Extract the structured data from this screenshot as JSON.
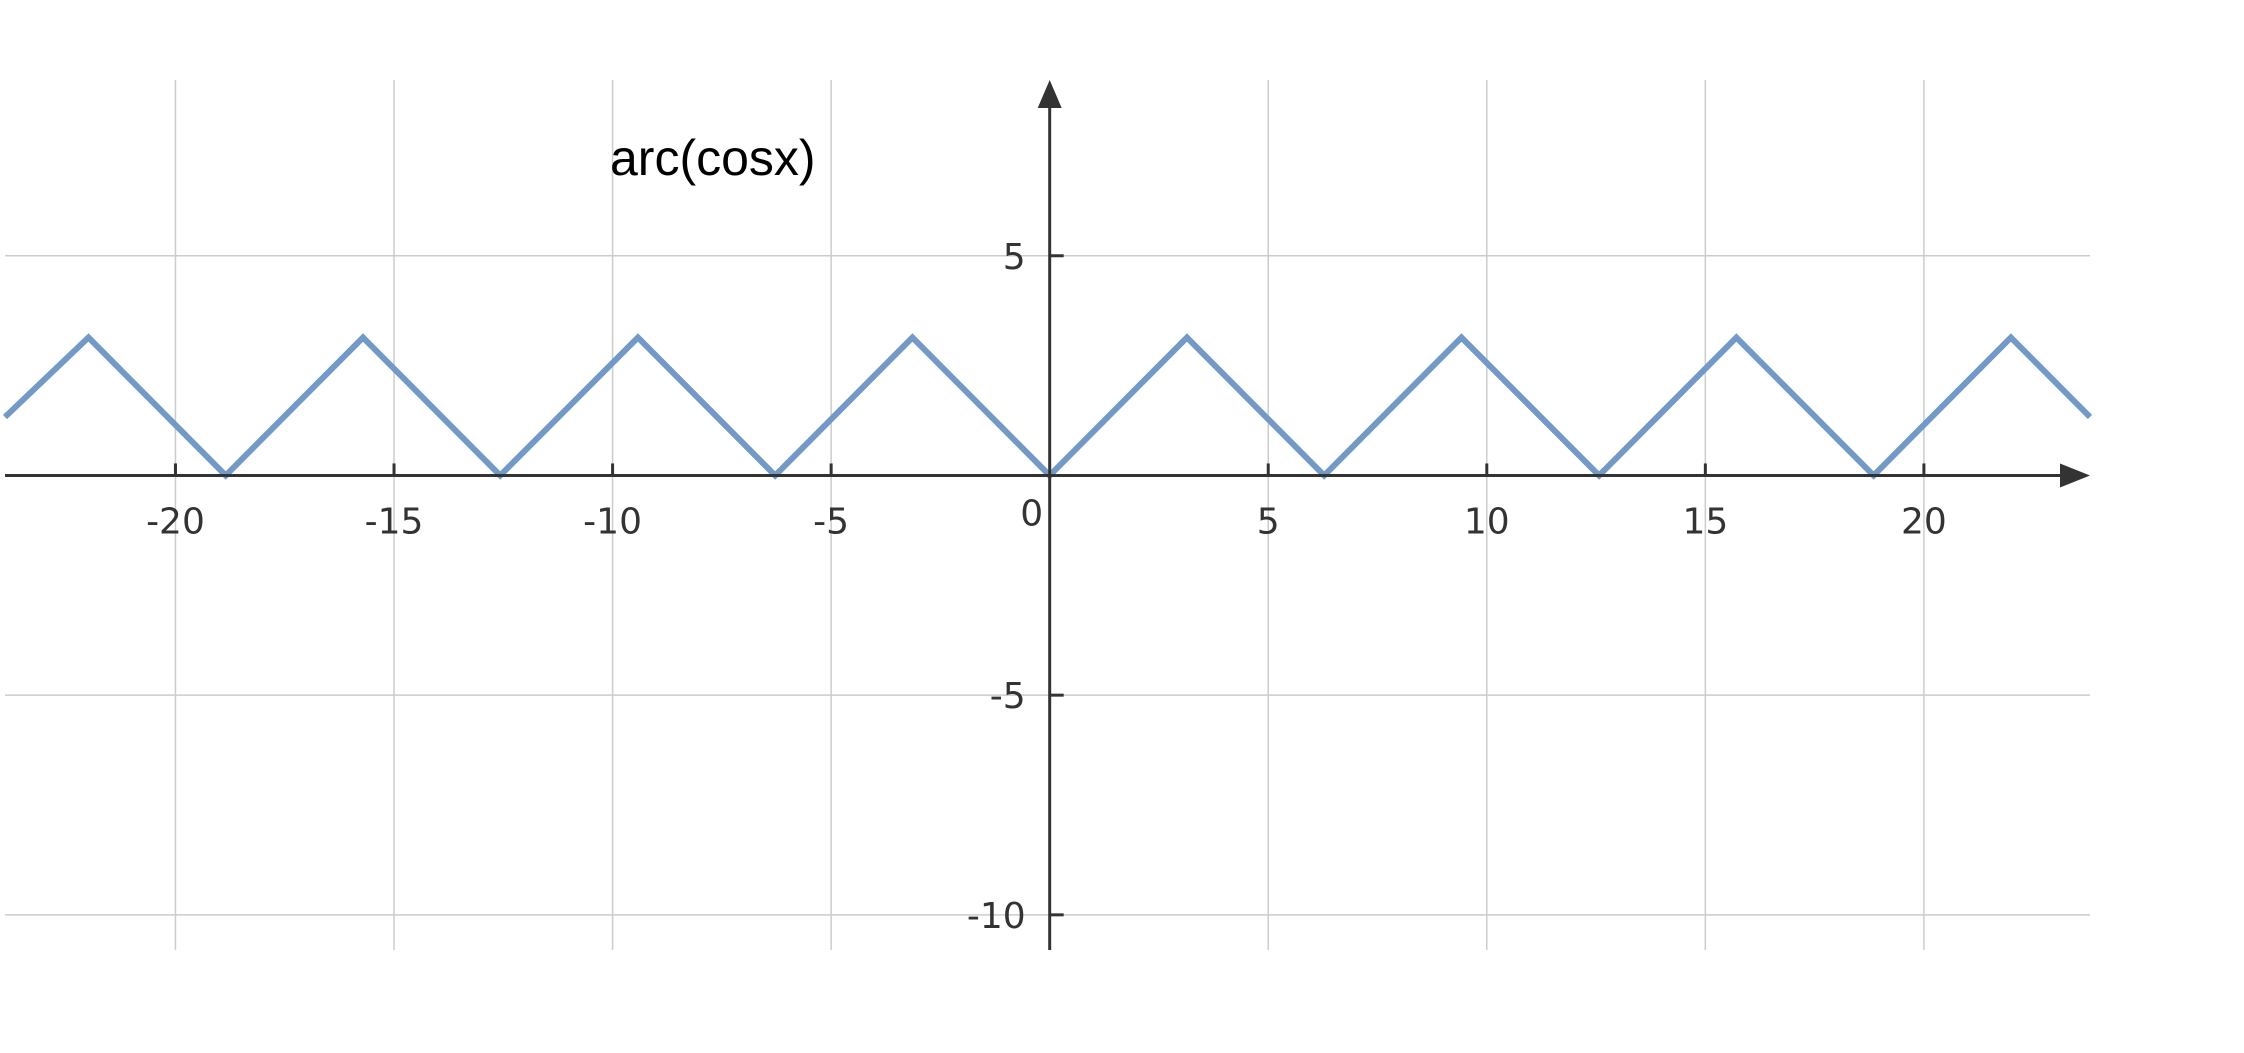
{
  "chart_data": {
    "type": "line",
    "annotation": "arc(cosx)",
    "xlim": [
      -23.9,
      23.8
    ],
    "ylim": [
      -10.8,
      9.0
    ],
    "x_ticks": [
      -20,
      -15,
      -10,
      -5,
      0,
      5,
      10,
      15,
      20
    ],
    "x_tick_labels": [
      "-20",
      "-15",
      "-10",
      "-5",
      "0",
      "5",
      "10",
      "15",
      "20"
    ],
    "y_ticks": [
      5,
      -5,
      -10
    ],
    "y_tick_labels": [
      "5",
      "-5",
      "-10"
    ],
    "grid": true,
    "series": [
      {
        "color": "#7399c6",
        "x": [
          -23.9,
          -21.99,
          -18.85,
          -15.71,
          -12.57,
          -9.42,
          -6.28,
          -3.14,
          0,
          3.14,
          6.28,
          9.42,
          12.57,
          15.71,
          18.85,
          21.99,
          23.8
        ],
        "y": [
          1.33,
          3.14,
          0,
          3.14,
          0,
          3.14,
          0,
          3.14,
          0,
          3.14,
          0,
          3.14,
          0,
          3.14,
          0,
          3.14,
          1.33
        ]
      }
    ]
  }
}
